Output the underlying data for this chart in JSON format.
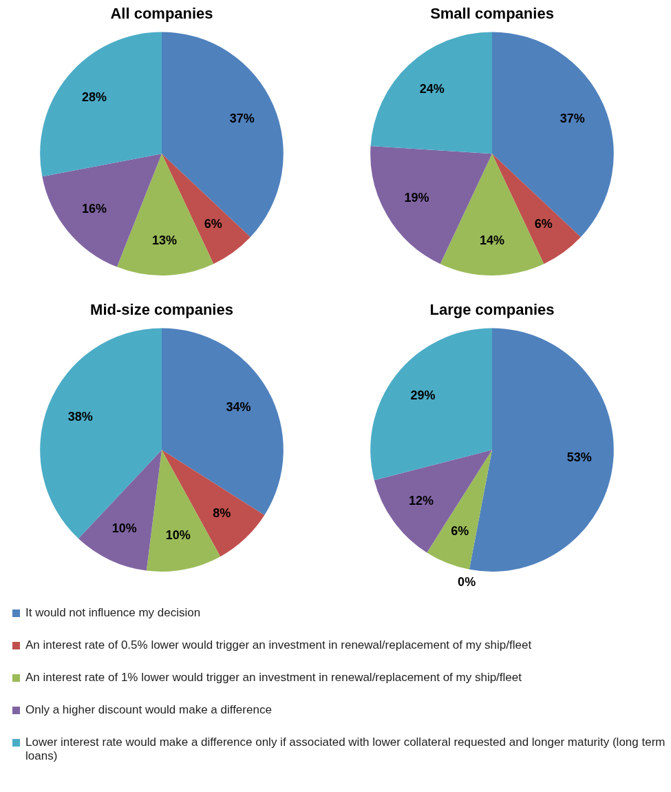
{
  "chart_data": [
    {
      "type": "pie",
      "title": "All companies",
      "categories": [
        "It would not influence my decision",
        "An interest rate of 0.5% lower would trigger an investment in renewal/replacement of my ship/fleet",
        "An interest rate of 1% lower would trigger an investment in renewal/replacement of my ship/fleet",
        "Only a higher discount would make a difference",
        "Lower interest rate would make a difference only if associated with lower collateral requested and longer maturity (long term loans)"
      ],
      "values": [
        37,
        6,
        13,
        16,
        28
      ],
      "value_labels": [
        "37%",
        "6%",
        "13%",
        "16%",
        "28%"
      ],
      "colors": [
        "#4f81bd",
        "#c0504d",
        "#9bbb59",
        "#8064a2",
        "#4bacc6"
      ],
      "legend": "bottom"
    },
    {
      "type": "pie",
      "title": "Small companies",
      "categories": [
        null,
        null,
        null,
        null,
        null
      ],
      "values": [
        37,
        6,
        14,
        19,
        24
      ],
      "value_labels": [
        "37%",
        "6%",
        "14%",
        "19%",
        "24%"
      ],
      "colors": [
        "#4f81bd",
        "#c0504d",
        "#9bbb59",
        "#8064a2",
        "#4bacc6"
      ]
    },
    {
      "type": "pie",
      "title": "Mid-size companies",
      "categories": [
        null,
        null,
        null,
        null,
        null
      ],
      "values": [
        34,
        8,
        10,
        10,
        38
      ],
      "value_labels": [
        "34%",
        "8%",
        "10%",
        "10%",
        "38%"
      ],
      "colors": [
        "#4f81bd",
        "#c0504d",
        "#9bbb59",
        "#8064a2",
        "#4bacc6"
      ]
    },
    {
      "type": "pie",
      "title": "Large companies",
      "categories": [
        null,
        null,
        null,
        null,
        null
      ],
      "values": [
        53,
        0,
        6,
        12,
        29
      ],
      "value_labels": [
        "53%",
        "0%",
        "6%",
        "12%",
        "29%"
      ],
      "colors": [
        "#4f81bd",
        "#c0504d",
        "#9bbb59",
        "#8064a2",
        "#4bacc6"
      ]
    }
  ]
}
